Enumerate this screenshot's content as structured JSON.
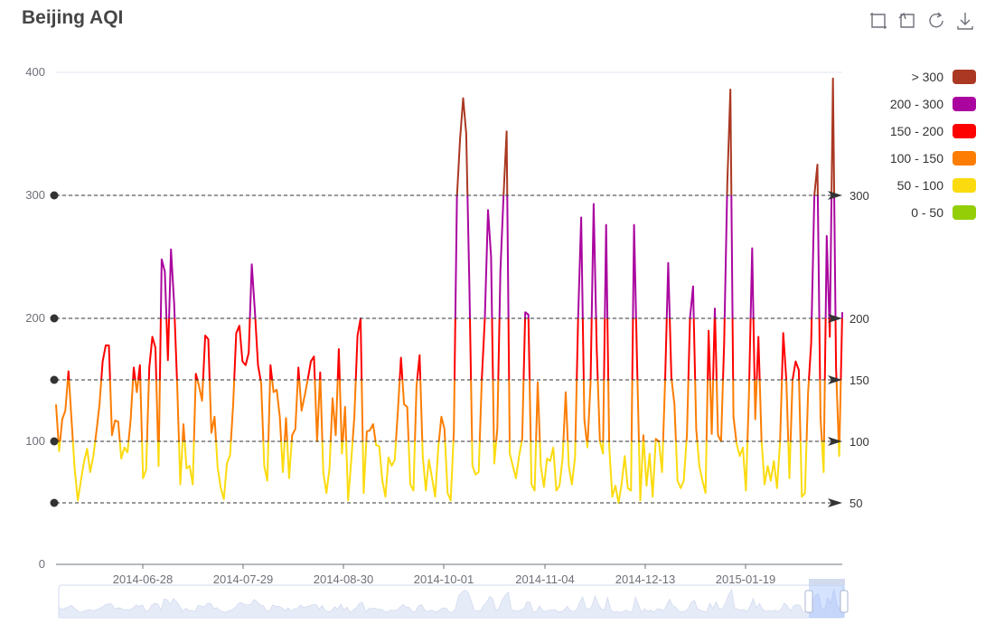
{
  "title": "Beijing AQI",
  "toolbox": [
    {
      "name": "zoom-icon"
    },
    {
      "name": "zoom-reset-icon"
    },
    {
      "name": "restore-icon"
    },
    {
      "name": "download-icon"
    }
  ],
  "legend": [
    {
      "label": "> 300",
      "color": "#aa3822"
    },
    {
      "label": "200 - 300",
      "color": "#aa069f"
    },
    {
      "label": "150 - 200",
      "color": "#fd0100"
    },
    {
      "label": "100 - 150",
      "color": "#fc7d02"
    },
    {
      "label": "50 - 100",
      "color": "#fbdb0f"
    },
    {
      "label": "0 - 50",
      "color": "#93ce07"
    }
  ],
  "chart_data": {
    "type": "line",
    "title": "Beijing AQI",
    "ylim": [
      0,
      400
    ],
    "yticks": [
      0,
      100,
      200,
      300,
      400
    ],
    "xticks": [
      "2014-06-28",
      "2014-07-29",
      "2014-08-30",
      "2014-10-01",
      "2014-11-04",
      "2014-12-13",
      "2015-01-19"
    ],
    "mark_lines": [
      50,
      100,
      150,
      200,
      300
    ],
    "pieces": [
      {
        "min": 0,
        "max": 50,
        "color": "#93ce07"
      },
      {
        "min": 50,
        "max": 100,
        "color": "#fbdb0f"
      },
      {
        "min": 100,
        "max": 150,
        "color": "#fc7d02"
      },
      {
        "min": 150,
        "max": 200,
        "color": "#fd0100"
      },
      {
        "min": 200,
        "max": 300,
        "color": "#aa069f"
      },
      {
        "min": 300,
        "max": 400,
        "color": "#aa3822"
      }
    ],
    "values": [
      130,
      92,
      118,
      125,
      157,
      117,
      78,
      52,
      68,
      83,
      94,
      75,
      88,
      108,
      130,
      165,
      178,
      178,
      105,
      117,
      116,
      86,
      95,
      91,
      117,
      160,
      140,
      162,
      70,
      77,
      160,
      185,
      176,
      80,
      248,
      238,
      166,
      256,
      212,
      145,
      65,
      114,
      78,
      80,
      65,
      155,
      145,
      133,
      186,
      183,
      107,
      120,
      79,
      62,
      53,
      82,
      89,
      130,
      188,
      194,
      165,
      162,
      172,
      244,
      205,
      162,
      147,
      80,
      68,
      162,
      140,
      142,
      120,
      75,
      119,
      70,
      105,
      110,
      160,
      125,
      137,
      150,
      165,
      169,
      100,
      156,
      75,
      58,
      78,
      135,
      105,
      175,
      90,
      128,
      52,
      85,
      120,
      186,
      200,
      58,
      108,
      109,
      114,
      97,
      96,
      68,
      55,
      87,
      80,
      85,
      125,
      168,
      130,
      128,
      65,
      60,
      145,
      170,
      88,
      60,
      85,
      70,
      55,
      95,
      120,
      110,
      58,
      52,
      108,
      298,
      345,
      379,
      350,
      226,
      80,
      73,
      75,
      150,
      200,
      288,
      250,
      82,
      110,
      238,
      300,
      352,
      90,
      80,
      70,
      88,
      102,
      205,
      203,
      65,
      60,
      148,
      80,
      63,
      86,
      84,
      95,
      60,
      64,
      86,
      140,
      80,
      65,
      87,
      200,
      282,
      118,
      95,
      148,
      293,
      175,
      100,
      90,
      276,
      96,
      55,
      64,
      50,
      65,
      88,
      62,
      60,
      276,
      162,
      52,
      105,
      64,
      90,
      55,
      102,
      100,
      75,
      150,
      245,
      152,
      130,
      68,
      62,
      68,
      105,
      200,
      226,
      110,
      80,
      68,
      58,
      190,
      106,
      208,
      105,
      100,
      180,
      310,
      386,
      120,
      98,
      88,
      95,
      60,
      140,
      257,
      118,
      185,
      102,
      65,
      80,
      68,
      84,
      62,
      100,
      188,
      150,
      70,
      150,
      165,
      158,
      55,
      58,
      140,
      180,
      300,
      325,
      120,
      75,
      267,
      185,
      395,
      160,
      88,
      205
    ]
  }
}
